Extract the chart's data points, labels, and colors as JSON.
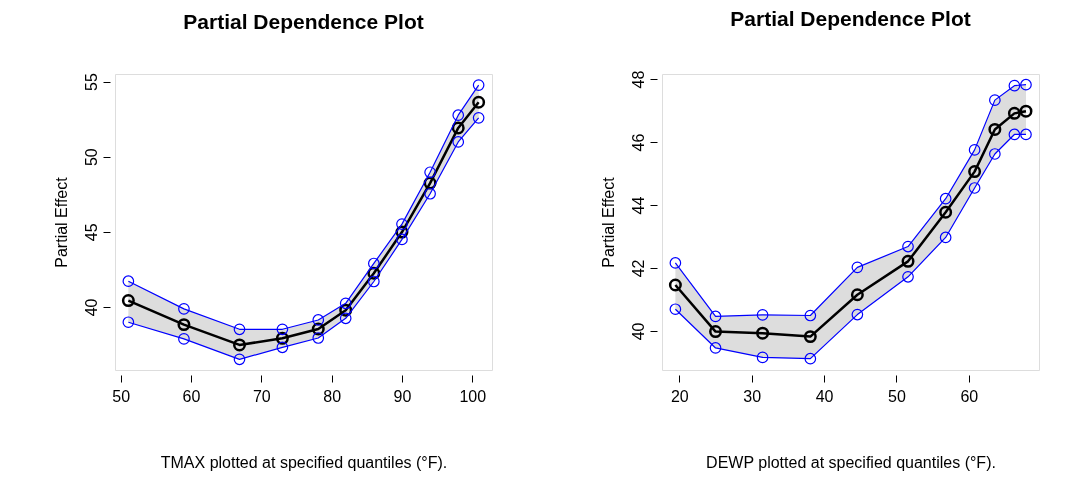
{
  "chart_data": [
    {
      "type": "line",
      "title": "Partial Dependence Plot",
      "xlabel": "TMAX plotted at specified quantiles (°F).",
      "ylabel": "Partial Effect",
      "x": [
        51.1,
        59,
        66.9,
        73,
        78.1,
        82,
        86,
        90,
        94,
        98,
        100.9
      ],
      "xlim": [
        49.2,
        102.8
      ],
      "xticks": [
        50,
        60,
        70,
        80,
        90,
        100
      ],
      "ylim": [
        35.8,
        55.5
      ],
      "yticks": [
        40,
        45,
        50,
        55
      ],
      "grid": false,
      "legend": false,
      "marker": "circle",
      "line_style": "solid",
      "series": [
        {
          "color": "#000000",
          "values": [
            40.42,
            38.82,
            37.47,
            37.91,
            38.53,
            39.78,
            42.24,
            44.98,
            48.24,
            51.91,
            53.62
          ],
          "lower": [
            38.98,
            37.87,
            36.51,
            37.31,
            37.93,
            39.24,
            41.69,
            44.49,
            47.53,
            50.98,
            52.58
          ],
          "upper": [
            41.71,
            39.87,
            38.51,
            38.51,
            39.13,
            40.24,
            42.89,
            45.51,
            48.96,
            52.76,
            54.76
          ]
        },
        {
          "color": "#0000ff",
          "values": [
            41.71,
            39.87,
            38.51,
            38.51,
            39.13,
            40.24,
            42.89,
            45.51,
            48.96,
            52.76,
            54.76
          ]
        },
        {
          "color": "#0000ff",
          "values": [
            38.98,
            37.87,
            36.51,
            37.31,
            37.93,
            39.24,
            41.69,
            44.49,
            47.53,
            50.98,
            52.58
          ]
        }
      ]
    },
    {
      "type": "line",
      "title": "Partial Dependence Plot",
      "xlabel": "DEWP plotted at specified quantiles (°F).",
      "ylabel": "Partial Effect",
      "x": [
        19.45,
        25.0,
        31.5,
        38.1,
        44.6,
        51.6,
        56.8,
        60.8,
        63.6,
        66.3,
        67.9
      ],
      "xlim": [
        17.6,
        69.7
      ],
      "xticks": [
        20,
        30,
        40,
        50,
        60
      ],
      "ylim": [
        38.76,
        48.16
      ],
      "yticks": [
        40,
        42,
        44,
        46,
        48
      ],
      "grid": false,
      "legend": false,
      "marker": "circle",
      "line_style": "solid",
      "series": [
        {
          "color": "#000000",
          "values": [
            41.46,
            39.98,
            39.93,
            39.82,
            41.15,
            42.21,
            43.77,
            45.06,
            46.4,
            46.91,
            46.98
          ],
          "lower": [
            40.69,
            39.46,
            39.16,
            39.12,
            40.52,
            41.72,
            42.97,
            44.54,
            45.62,
            46.24,
            46.24
          ],
          "upper": [
            42.16,
            40.46,
            40.51,
            40.49,
            42.02,
            42.68,
            44.2,
            45.75,
            47.33,
            47.79,
            47.82
          ]
        },
        {
          "color": "#0000ff",
          "values": [
            42.16,
            40.46,
            40.51,
            40.49,
            42.02,
            42.68,
            44.2,
            45.75,
            47.33,
            47.79,
            47.82
          ]
        },
        {
          "color": "#0000ff",
          "values": [
            40.69,
            39.46,
            39.16,
            39.12,
            40.52,
            41.72,
            42.97,
            44.54,
            45.62,
            46.24,
            46.24
          ]
        }
      ]
    }
  ]
}
